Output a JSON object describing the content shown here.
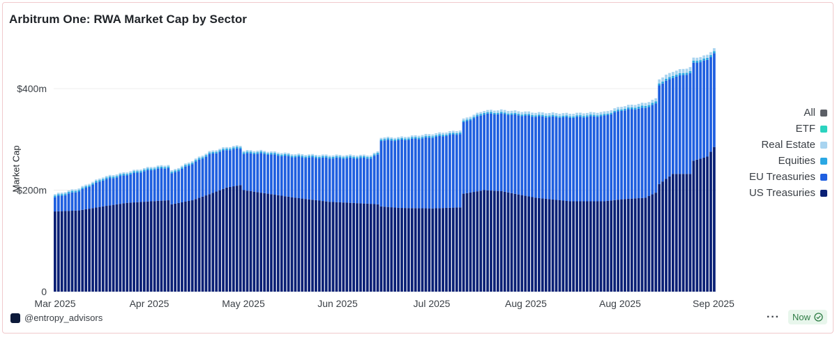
{
  "title": "Arbitrum One: RWA Market Cap by Sector",
  "source_label": "@entropy_advisors",
  "status_badge": "Now",
  "more_label": "···",
  "colors": {
    "us_treasuries": "#0a2075",
    "eu_treasuries": "#1f5fe0",
    "equities": "#2aa7e3",
    "real_estate": "#a8d4f0",
    "etf": "#2bd3bf",
    "all": "#5c5f66"
  },
  "legend": [
    {
      "label": "All",
      "color": "#5c5f66"
    },
    {
      "label": "ETF",
      "color": "#2bd3bf"
    },
    {
      "label": "Real Estate",
      "color": "#a8d4f0"
    },
    {
      "label": "Equities",
      "color": "#2aa7e3"
    },
    {
      "label": "EU Treasuries",
      "color": "#1f5fe0"
    },
    {
      "label": "US Treasuries",
      "color": "#0a2075"
    }
  ],
  "chart_data": {
    "type": "bar",
    "stacked": true,
    "ylabel": "Market Cap",
    "ylim": [
      0,
      480
    ],
    "yticks": [
      {
        "value": 0,
        "label": "0"
      },
      {
        "value": 200,
        "label": "$200m"
      },
      {
        "value": 400,
        "label": "$400m"
      }
    ],
    "xtick_labels": [
      "Mar 2025",
      "Apr 2025",
      "May 2025",
      "Jun 2025",
      "Jul 2025",
      "Aug 2025",
      "Aug 2025",
      "Sep 2025"
    ],
    "grid": true,
    "legend_position": "right",
    "series_order": [
      "US Treasuries",
      "EU Treasuries",
      "Equities",
      "Real Estate"
    ],
    "keyframes": [
      {
        "day": 0,
        "us": 158,
        "eu": 28,
        "eq": 3,
        "re": 3
      },
      {
        "day": 7,
        "us": 160,
        "eu": 38,
        "eq": 3,
        "re": 3
      },
      {
        "day": 14,
        "us": 168,
        "eu": 52,
        "eq": 3,
        "re": 3
      },
      {
        "day": 21,
        "us": 175,
        "eu": 55,
        "eq": 3,
        "re": 3
      },
      {
        "day": 28,
        "us": 178,
        "eu": 62,
        "eq": 3,
        "re": 3
      },
      {
        "day": 33,
        "us": 180,
        "eu": 64,
        "eq": 3,
        "re": 3
      },
      {
        "day": 34,
        "us": 172,
        "eu": 60,
        "eq": 3,
        "re": 3
      },
      {
        "day": 40,
        "us": 180,
        "eu": 72,
        "eq": 3,
        "re": 3
      },
      {
        "day": 45,
        "us": 192,
        "eu": 78,
        "eq": 3,
        "re": 3
      },
      {
        "day": 50,
        "us": 205,
        "eu": 74,
        "eq": 3,
        "re": 3
      },
      {
        "day": 54,
        "us": 210,
        "eu": 72,
        "eq": 3,
        "re": 3
      },
      {
        "day": 55,
        "us": 200,
        "eu": 72,
        "eq": 3,
        "re": 3
      },
      {
        "day": 60,
        "us": 195,
        "eu": 77,
        "eq": 3,
        "re": 3
      },
      {
        "day": 70,
        "us": 185,
        "eu": 80,
        "eq": 3,
        "re": 3
      },
      {
        "day": 80,
        "us": 177,
        "eu": 86,
        "eq": 3,
        "re": 3
      },
      {
        "day": 92,
        "us": 173,
        "eu": 90,
        "eq": 3,
        "re": 3
      },
      {
        "day": 94,
        "us": 172,
        "eu": 98,
        "eq": 3,
        "re": 3
      },
      {
        "day": 95,
        "us": 168,
        "eu": 130,
        "eq": 3,
        "re": 3
      },
      {
        "day": 100,
        "us": 165,
        "eu": 133,
        "eq": 3,
        "re": 3
      },
      {
        "day": 110,
        "us": 164,
        "eu": 140,
        "eq": 3,
        "re": 4
      },
      {
        "day": 118,
        "us": 166,
        "eu": 145,
        "eq": 3,
        "re": 4
      },
      {
        "day": 119,
        "us": 193,
        "eu": 140,
        "eq": 3,
        "re": 4
      },
      {
        "day": 125,
        "us": 200,
        "eu": 150,
        "eq": 3,
        "re": 4
      },
      {
        "day": 130,
        "us": 198,
        "eu": 152,
        "eq": 3,
        "re": 5
      },
      {
        "day": 140,
        "us": 185,
        "eu": 160,
        "eq": 3,
        "re": 5
      },
      {
        "day": 150,
        "us": 178,
        "eu": 165,
        "eq": 3,
        "re": 5
      },
      {
        "day": 160,
        "us": 178,
        "eu": 168,
        "eq": 3,
        "re": 5
      },
      {
        "day": 165,
        "us": 182,
        "eu": 175,
        "eq": 3,
        "re": 5
      },
      {
        "day": 172,
        "us": 185,
        "eu": 177,
        "eq": 4,
        "re": 6
      },
      {
        "day": 175,
        "us": 195,
        "eu": 175,
        "eq": 4,
        "re": 6
      },
      {
        "day": 176,
        "us": 212,
        "eu": 195,
        "eq": 4,
        "re": 8
      },
      {
        "day": 180,
        "us": 232,
        "eu": 190,
        "eq": 4,
        "re": 8
      },
      {
        "day": 185,
        "us": 232,
        "eu": 198,
        "eq": 4,
        "re": 8
      },
      {
        "day": 186,
        "us": 258,
        "eu": 192,
        "eq": 4,
        "re": 6
      },
      {
        "day": 190,
        "us": 266,
        "eu": 190,
        "eq": 4,
        "re": 6
      },
      {
        "day": 192,
        "us": 285,
        "eu": 185,
        "eq": 4,
        "re": 6
      }
    ]
  }
}
